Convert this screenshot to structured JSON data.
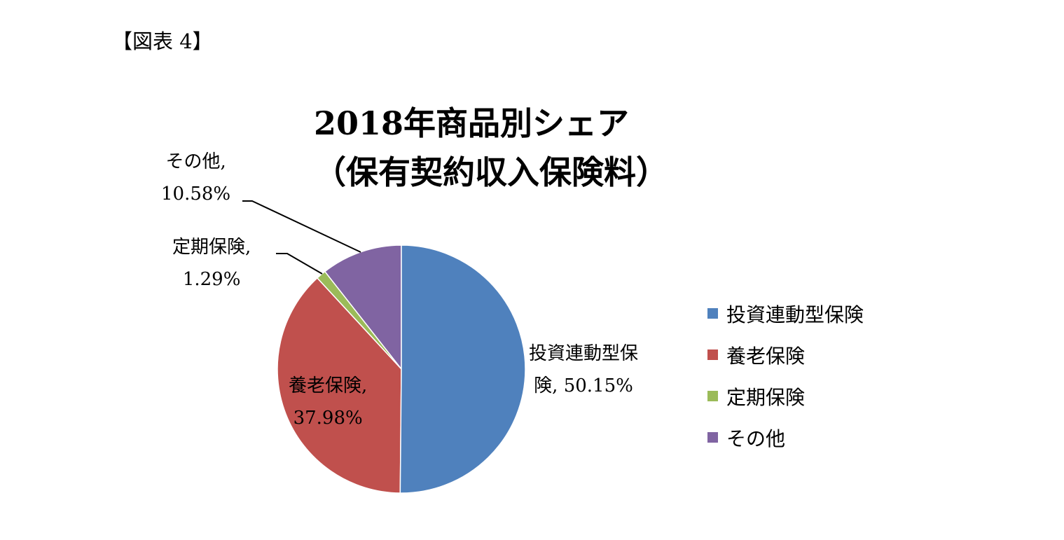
{
  "figure_label": "【図表 4】",
  "chart_data": {
    "type": "pie",
    "title": [
      "2018年商品別シェア",
      "（保有契約収入保険料）"
    ],
    "categories": [
      "投資連動型保険",
      "養老保険",
      "定期保険",
      "その他"
    ],
    "values": [
      50.15,
      37.98,
      1.29,
      10.58
    ],
    "unit": "%",
    "colors": [
      "#4F81BD",
      "#C0504D",
      "#9BBB59",
      "#8064A2"
    ],
    "data_labels": [
      [
        "投資連動型保",
        "険, 50.15%"
      ],
      [
        "養老保険,",
        "37.98%"
      ],
      [
        "定期保険,",
        "1.29%"
      ],
      [
        "その他,",
        "10.58%"
      ]
    ],
    "legend_position": "right",
    "start_angle": "top",
    "direction": "clockwise"
  }
}
